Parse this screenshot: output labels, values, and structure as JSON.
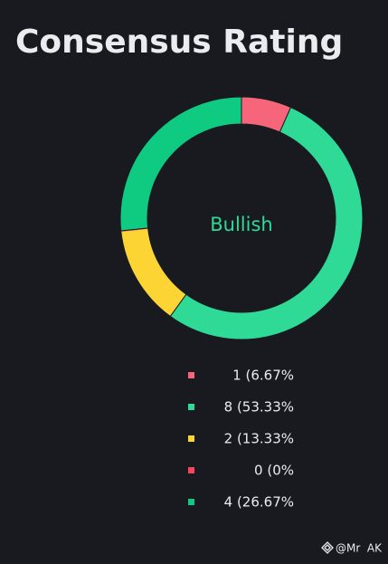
{
  "chart_data": {
    "type": "donut",
    "title": "Consensus Rating",
    "center_label": "Bullish",
    "values": [
      1,
      8,
      2,
      0,
      4
    ],
    "value_labels": [
      "1 (6.67%",
      "8 (53.33%",
      "2 (13.33%",
      "0 (0%",
      "4 (26.67%"
    ],
    "colors": [
      "#f7657a",
      "#2fd996",
      "#fcd535",
      "#f6465d",
      "#0ecb81"
    ]
  },
  "watermark": "@Mr  AK"
}
